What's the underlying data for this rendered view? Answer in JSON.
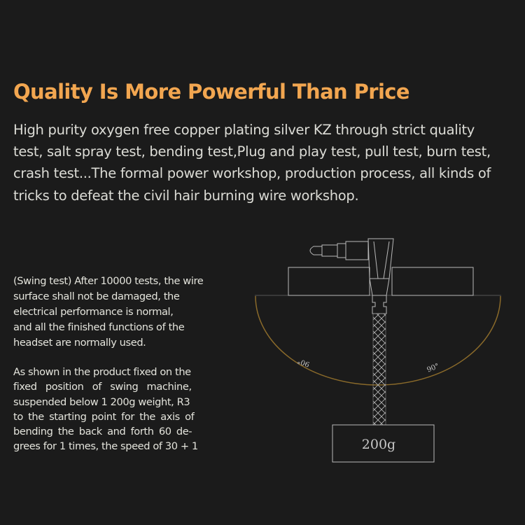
{
  "title": "Quality Is More Powerful Than Price",
  "intro_lines": [
    "High purity oxygen free copper plating silver KZ through strict quality",
    "test, salt spray test, bending test,Plug and play test, pull test, burn test,",
    "crash test...The formal power workshop, production process, all kinds of",
    "tricks to defeat the civil hair burning wire workshop."
  ],
  "swing_test_lines": [
    "(Swing test) After 10000 tests, the wire",
    "surface shall not be damaged, the",
    "electrical performance is normal,",
    "and all the finished functions of the",
    "headset are normally used."
  ],
  "procedure_lines": [
    "As shown in the product fixed on the",
    "fixed position of swing machine,",
    "suspended below 1 200g weight, R3",
    "to the starting point for the axis of",
    "bending the back and forth 60 de-",
    "grees for 1 times, the speed of 30 + 1"
  ],
  "diagram": {
    "left_angle": "90°",
    "right_angle": "90°",
    "weight_label": "200g",
    "arc_color": "#8a6a2a",
    "line_color": "#b8b8b8"
  },
  "colors": {
    "title": "#f2a650",
    "background": "#1b1b1b"
  }
}
